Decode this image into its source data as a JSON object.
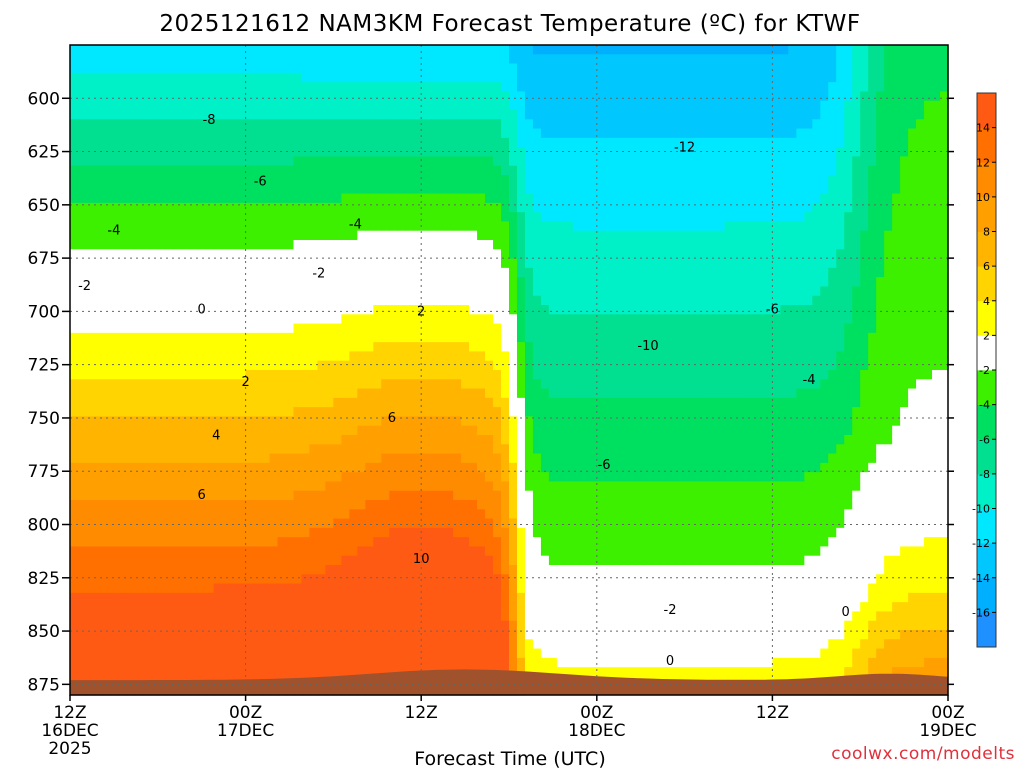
{
  "chart_data": {
    "type": "heatmap",
    "title": "2025121612 NAM3KM Forecast Temperature (ºC) for KTWF",
    "xlabel": "Forecast Time (UTC)",
    "ylabel": "",
    "credit": "coolwx.com/modelts",
    "credit_color": "#e0303c",
    "ylim": [
      880,
      575
    ],
    "y_ticks": [
      "600",
      "625",
      "650",
      "675",
      "700",
      "725",
      "750",
      "775",
      "800",
      "825",
      "850",
      "875"
    ],
    "x_ticks": [
      {
        "top": "12Z",
        "mid": "16DEC",
        "bot": "2025"
      },
      {
        "top": "00Z",
        "mid": "17DEC",
        "bot": ""
      },
      {
        "top": "12Z",
        "mid": "",
        "bot": ""
      },
      {
        "top": "00Z",
        "mid": "18DEC",
        "bot": ""
      },
      {
        "top": "12Z",
        "mid": "",
        "bot": ""
      },
      {
        "top": "00Z",
        "mid": "19DEC",
        "bot": ""
      }
    ],
    "x_hours": [
      0,
      12,
      24,
      36,
      48,
      60
    ],
    "colorbar": {
      "levels": [
        -18,
        -16,
        -14,
        -12,
        -10,
        -8,
        -6,
        -4,
        -2,
        2,
        4,
        6,
        8,
        10,
        12,
        14,
        16
      ],
      "labels": [
        "-16",
        "-14",
        "-12",
        "-10",
        "-8",
        "-6",
        "-4",
        "-2",
        "2",
        "4",
        "6",
        "8",
        "10",
        "12",
        "14"
      ],
      "colors": [
        "#1e90ff",
        "#00b0ff",
        "#00c8ff",
        "#00e8ff",
        "#00f0c8",
        "#00e090",
        "#00e060",
        "#3cf000",
        "#ffffff",
        "#ffff00",
        "#ffd400",
        "#ffb400",
        "#ffa000",
        "#ff8c00",
        "#ff7000",
        "#ff5a14"
      ]
    },
    "contour_labels": [
      "-8",
      "-6",
      "-4",
      "-4",
      "-2",
      "-2",
      "0",
      "2",
      "2",
      "4",
      "6",
      "6",
      "10",
      "-12",
      "-10",
      "-6",
      "-6",
      "-4",
      "-2",
      "0",
      "0"
    ],
    "terrain_color": "#a0522d",
    "grid": true,
    "legend": "right"
  }
}
